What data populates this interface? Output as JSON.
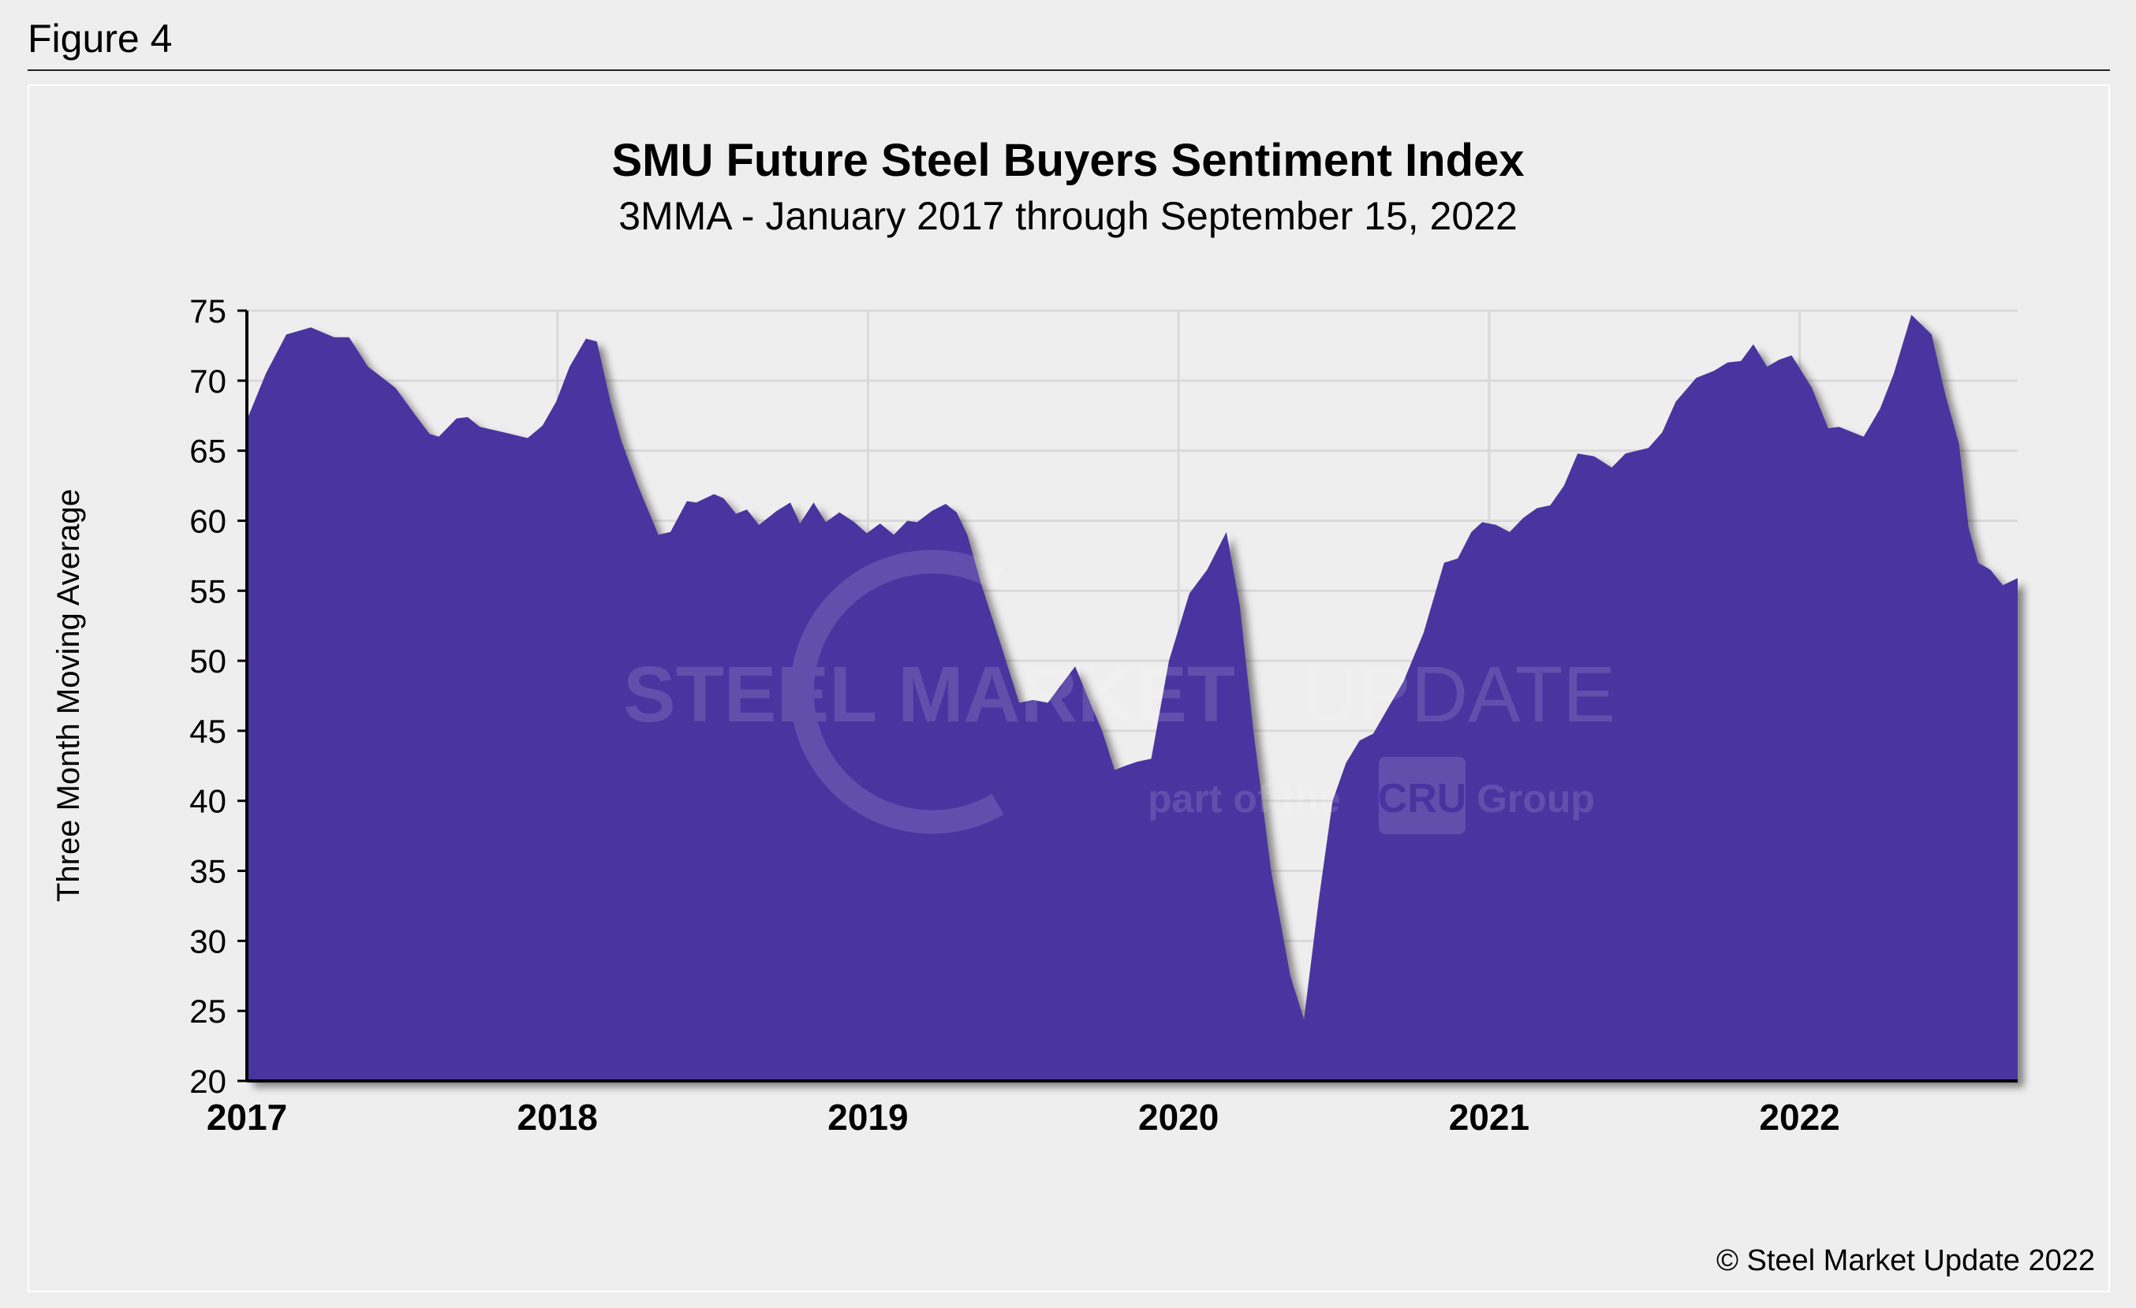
{
  "figure_label": "Figure 4",
  "copyright": "© Steel Market Update 2022",
  "watermark": {
    "line1_bold": "STEEL MARKET",
    "line1_light": "UPDATE",
    "line2": "part of the",
    "badge": "CRU",
    "line2_end": "Group"
  },
  "colors": {
    "area": "#4834a0",
    "grid": "#d9d9d9",
    "background": "#eeeeee"
  },
  "chart_data": {
    "type": "area",
    "title": "SMU Future Steel Buyers Sentiment Index",
    "subtitle": "3MMA - January 2017 through September 15, 2022",
    "xlabel": "",
    "ylabel": "Three Month Moving Average",
    "xlim": [
      2017,
      2022.702
    ],
    "ylim": [
      20,
      75
    ],
    "yticks": [
      20,
      25,
      30,
      35,
      40,
      45,
      50,
      55,
      60,
      65,
      70,
      75
    ],
    "xticks": [
      2017,
      2018,
      2019,
      2020,
      2021,
      2022
    ],
    "xtick_labels": [
      "2017",
      "2018",
      "2019",
      "2020",
      "2021",
      "2022"
    ],
    "grid": true,
    "legend": "none",
    "series": [
      {
        "name": "SMU Future Steel Buyers Sentiment Index 3MMA",
        "points": [
          [
            2017.0,
            67.2
          ],
          [
            2017.061,
            70.5
          ],
          [
            2017.127,
            73.3
          ],
          [
            2017.206,
            73.8
          ],
          [
            2017.281,
            73.1
          ],
          [
            2017.329,
            73.1
          ],
          [
            2017.39,
            71.0
          ],
          [
            2017.478,
            69.5
          ],
          [
            2017.544,
            67.5
          ],
          [
            2017.588,
            66.2
          ],
          [
            2017.618,
            66.0
          ],
          [
            2017.675,
            67.3
          ],
          [
            2017.711,
            67.4
          ],
          [
            2017.75,
            66.7
          ],
          [
            2017.829,
            66.3
          ],
          [
            2017.904,
            65.9
          ],
          [
            2017.952,
            66.8
          ],
          [
            2017.996,
            68.5
          ],
          [
            2018.039,
            71.0
          ],
          [
            2018.092,
            73.0
          ],
          [
            2018.127,
            72.8
          ],
          [
            2018.171,
            68.5
          ],
          [
            2018.206,
            65.7
          ],
          [
            2018.259,
            62.5
          ],
          [
            2018.325,
            59.0
          ],
          [
            2018.364,
            59.2
          ],
          [
            2018.417,
            61.4
          ],
          [
            2018.447,
            61.3
          ],
          [
            2018.504,
            61.9
          ],
          [
            2018.535,
            61.6
          ],
          [
            2018.575,
            60.5
          ],
          [
            2018.61,
            60.8
          ],
          [
            2018.649,
            59.7
          ],
          [
            2018.706,
            60.7
          ],
          [
            2018.75,
            61.3
          ],
          [
            2018.781,
            59.8
          ],
          [
            2018.825,
            61.3
          ],
          [
            2018.864,
            59.9
          ],
          [
            2018.908,
            60.6
          ],
          [
            2018.956,
            59.9
          ],
          [
            2018.996,
            59.1
          ],
          [
            2019.039,
            59.8
          ],
          [
            2019.083,
            59.0
          ],
          [
            2019.127,
            60.0
          ],
          [
            2019.158,
            59.9
          ],
          [
            2019.206,
            60.7
          ],
          [
            2019.25,
            61.2
          ],
          [
            2019.285,
            60.6
          ],
          [
            2019.32,
            59.0
          ],
          [
            2019.364,
            55.5
          ],
          [
            2019.43,
            51.0
          ],
          [
            2019.487,
            47.0
          ],
          [
            2019.531,
            47.2
          ],
          [
            2019.579,
            47.0
          ],
          [
            2019.623,
            48.3
          ],
          [
            2019.667,
            49.6
          ],
          [
            2019.715,
            47.0
          ],
          [
            2019.754,
            45.0
          ],
          [
            2019.794,
            42.2
          ],
          [
            2019.829,
            42.5
          ],
          [
            2019.868,
            42.8
          ],
          [
            2019.912,
            43.0
          ],
          [
            2019.969,
            50.0
          ],
          [
            2020.035,
            54.8
          ],
          [
            2020.092,
            56.5
          ],
          [
            2020.154,
            59.2
          ],
          [
            2020.197,
            54.0
          ],
          [
            2020.241,
            45.0
          ],
          [
            2020.298,
            35.0
          ],
          [
            2020.36,
            27.5
          ],
          [
            2020.404,
            24.4
          ],
          [
            2020.452,
            33.0
          ],
          [
            2020.496,
            40.0
          ],
          [
            2020.539,
            42.7
          ],
          [
            2020.583,
            44.3
          ],
          [
            2020.627,
            44.8
          ],
          [
            2020.671,
            46.5
          ],
          [
            2020.724,
            48.5
          ],
          [
            2020.789,
            52.0
          ],
          [
            2020.855,
            57.0
          ],
          [
            2020.899,
            57.3
          ],
          [
            2020.943,
            59.2
          ],
          [
            2020.978,
            59.9
          ],
          [
            2021.022,
            59.7
          ],
          [
            2021.066,
            59.2
          ],
          [
            2021.11,
            60.2
          ],
          [
            2021.154,
            60.9
          ],
          [
            2021.197,
            61.1
          ],
          [
            2021.241,
            62.5
          ],
          [
            2021.285,
            64.8
          ],
          [
            2021.338,
            64.6
          ],
          [
            2021.395,
            63.8
          ],
          [
            2021.439,
            64.8
          ],
          [
            2021.513,
            65.2
          ],
          [
            2021.557,
            66.3
          ],
          [
            2021.601,
            68.5
          ],
          [
            2021.667,
            70.2
          ],
          [
            2021.724,
            70.7
          ],
          [
            2021.768,
            71.3
          ],
          [
            2021.811,
            71.4
          ],
          [
            2021.851,
            72.6
          ],
          [
            2021.895,
            71.0
          ],
          [
            2021.934,
            71.5
          ],
          [
            2021.974,
            71.8
          ],
          [
            2022.039,
            69.5
          ],
          [
            2022.092,
            66.6
          ],
          [
            2022.127,
            66.7
          ],
          [
            2022.206,
            66.0
          ],
          [
            2022.259,
            68.0
          ],
          [
            2022.303,
            70.5
          ],
          [
            2022.36,
            74.7
          ],
          [
            2022.425,
            73.3
          ],
          [
            2022.469,
            69.0
          ],
          [
            2022.513,
            65.5
          ],
          [
            2022.544,
            59.5
          ],
          [
            2022.575,
            57.0
          ],
          [
            2022.614,
            56.5
          ],
          [
            2022.654,
            55.4
          ],
          [
            2022.702,
            55.9
          ]
        ]
      }
    ]
  }
}
